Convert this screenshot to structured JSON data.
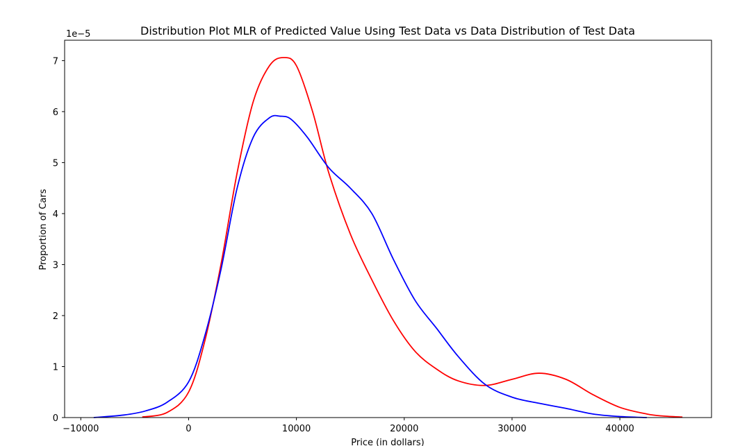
{
  "chart_data": {
    "type": "line",
    "title": "Distribution  Plot MLR  of  Predicted Value Using Test Data vs Data Distribution of Test Data",
    "xlabel": "Price (in dollars)",
    "ylabel": "Proportion of Cars",
    "y_offset_label": "1e−5",
    "xlim": [
      -11500,
      48500
    ],
    "ylim": [
      0,
      7.4
    ],
    "x_ticks": [
      -10000,
      0,
      10000,
      20000,
      30000,
      40000
    ],
    "x_tick_labels": [
      "−10000",
      "0",
      "10000",
      "20000",
      "30000",
      "40000"
    ],
    "y_ticks": [
      0,
      1,
      2,
      3,
      4,
      5,
      6,
      7
    ],
    "y_tick_labels": [
      "0",
      "1",
      "2",
      "3",
      "4",
      "5",
      "6",
      "7"
    ],
    "grid": false,
    "legend": "none",
    "series": [
      {
        "color": "#ff0000",
        "x": [
          -4300,
          -2000,
          0,
          1500,
          3000,
          4500,
          6000,
          7500,
          8800,
          10000,
          11500,
          13000,
          15000,
          17000,
          19000,
          21000,
          23000,
          25000,
          27500,
          30000,
          32500,
          35000,
          37500,
          40000,
          42500,
          44000,
          45800
        ],
        "y": [
          0.01,
          0.1,
          0.5,
          1.5,
          3.0,
          4.8,
          6.2,
          6.9,
          7.06,
          6.9,
          6.0,
          4.8,
          3.6,
          2.7,
          1.9,
          1.3,
          0.95,
          0.72,
          0.63,
          0.75,
          0.87,
          0.75,
          0.45,
          0.2,
          0.07,
          0.03,
          0.01
        ]
      },
      {
        "color": "#0000ff",
        "x": [
          -8800,
          -6000,
          -4000,
          -2000,
          0,
          1500,
          3000,
          4500,
          6000,
          7500,
          8500,
          9500,
          11000,
          13000,
          15000,
          17000,
          19000,
          21000,
          23000,
          25000,
          27500,
          30000,
          32500,
          35000,
          37500,
          40000,
          42500
        ],
        "y": [
          0.0,
          0.05,
          0.13,
          0.3,
          0.7,
          1.6,
          2.9,
          4.5,
          5.5,
          5.88,
          5.91,
          5.85,
          5.5,
          4.9,
          4.5,
          4.0,
          3.1,
          2.3,
          1.75,
          1.2,
          0.65,
          0.4,
          0.28,
          0.18,
          0.07,
          0.02,
          0.0
        ]
      }
    ]
  }
}
